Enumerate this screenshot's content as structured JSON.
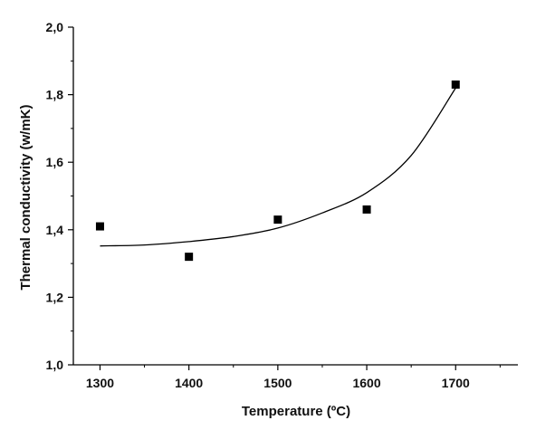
{
  "chart_data": {
    "type": "scatter",
    "xlabel": "Temperature (ºC)",
    "ylabel": "Thermal conductivity (w/mK)",
    "xlim": [
      1270,
      1770
    ],
    "ylim": [
      1.0,
      2.0
    ],
    "x_ticks": [
      1300,
      1400,
      1500,
      1600,
      1700
    ],
    "y_ticks": [
      1.0,
      1.2,
      1.4,
      1.6,
      1.8,
      2.0
    ],
    "x_tick_labels": [
      "1300",
      "1400",
      "1500",
      "1600",
      "1700"
    ],
    "y_tick_labels": [
      "1,0",
      "1,2",
      "1,4",
      "1,6",
      "1,8",
      "2,0"
    ],
    "grid": false,
    "series": [
      {
        "marker": "square",
        "color": "#000000",
        "x": [
          1300,
          1400,
          1500,
          1600,
          1700
        ],
        "y": [
          1.41,
          1.32,
          1.43,
          1.46,
          1.83
        ]
      }
    ],
    "fit_curve": {
      "type": "exponential",
      "color": "#000000",
      "x": [
        1300,
        1350,
        1400,
        1450,
        1500,
        1550,
        1600,
        1650,
        1700
      ],
      "y": [
        1.352,
        1.355,
        1.365,
        1.38,
        1.405,
        1.45,
        1.51,
        1.62,
        1.82
      ]
    }
  }
}
